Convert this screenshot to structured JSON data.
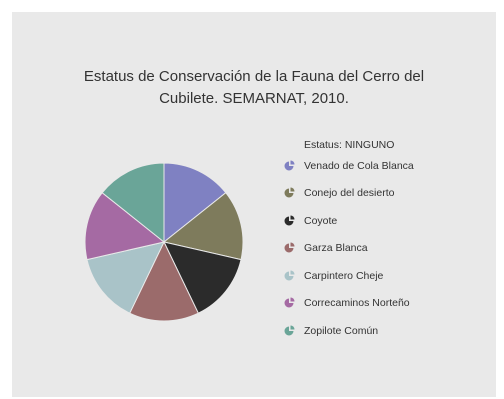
{
  "chart_data": {
    "type": "pie",
    "title_line1": "Estatus de Conservación de la Fauna del  Cerro del",
    "title_line2": "Cubilete. SEMARNAT, 2010.",
    "legend_title": "Estatus: NINGUNO",
    "legend_position": "right",
    "categories": [
      "Venado de Cola Blanca",
      "Conejo del desierto",
      "Coyote",
      "Garza Blanca",
      "Carpintero Cheje",
      "Correcaminos Norteño",
      "Zopilote Común"
    ],
    "values": [
      1,
      1,
      1,
      1,
      1,
      1,
      1
    ],
    "colors": [
      "#7f81c2",
      "#7e7b5c",
      "#2b2b2b",
      "#9b6b6b",
      "#a9c3c8",
      "#a56aa3",
      "#6aa598"
    ]
  }
}
